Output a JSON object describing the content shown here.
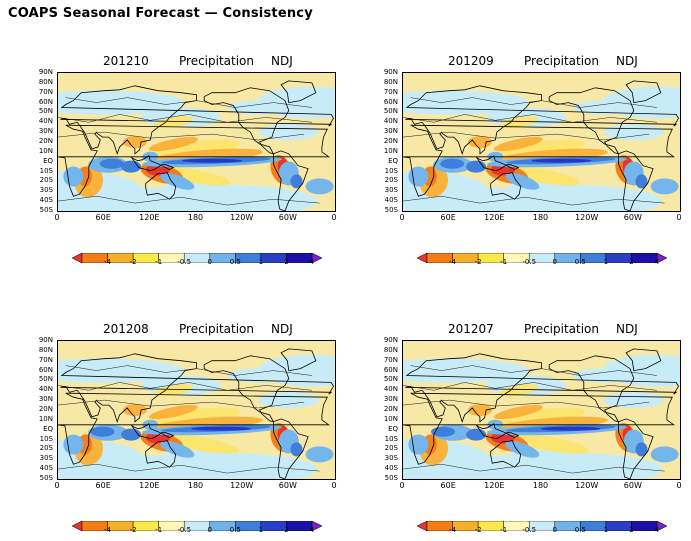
{
  "title": "COAPS Seasonal Forecast — Consistency",
  "panels": [
    {
      "date": "201210",
      "variable": "Precipitation",
      "season": "NDJ"
    },
    {
      "date": "201209",
      "variable": "Precipitation",
      "season": "NDJ"
    },
    {
      "date": "201208",
      "variable": "Precipitation",
      "season": "NDJ"
    },
    {
      "date": "201207",
      "variable": "Precipitation",
      "season": "NDJ"
    }
  ],
  "lat_labels": [
    "90N",
    "80N",
    "70N",
    "60N",
    "50N",
    "40N",
    "30N",
    "20N",
    "10N",
    "EQ",
    "10S",
    "20S",
    "30S",
    "40S",
    "50S"
  ],
  "lon_labels": [
    "0",
    "60E",
    "120E",
    "180",
    "120W",
    "60W",
    "0"
  ],
  "colorbar": {
    "labels": [
      "-4",
      "-2",
      "-1",
      "-0.5",
      "0",
      "0.5",
      "1",
      "2",
      "4"
    ],
    "colors": [
      "#e8342a",
      "#f47d16",
      "#f7ae2a",
      "#fbe84a",
      "#fdf8b8",
      "#c7ecf8",
      "#6fb3ea",
      "#3d7ed9",
      "#2a3fc6",
      "#1a12a8",
      "#7a1fc9"
    ]
  },
  "palette": {
    "dry3": "#f27f1e",
    "dry4": "#e8342a",
    "dry2": "#f9b23c",
    "dry1": "#fbe56e",
    "neutral_dry": "#f7e8a6",
    "neutral_wet": "#c8ecf7",
    "wet1": "#74b6ec",
    "wet2": "#3f7edb",
    "wet3": "#2438c2"
  }
}
